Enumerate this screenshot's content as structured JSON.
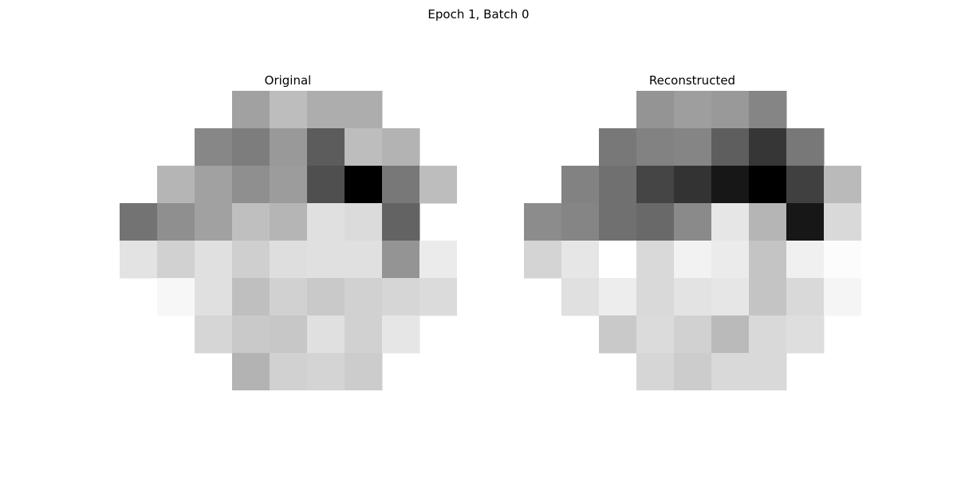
{
  "figure": {
    "suptitle": "Epoch 1, Batch 0"
  },
  "chart_data": [
    {
      "type": "heatmap",
      "title": "Original",
      "colormap": "gray_r",
      "grid_size": [
        8,
        9
      ],
      "axes": "off",
      "values": [
        [
          null,
          null,
          null,
          0.37,
          0.26,
          0.32,
          0.32,
          null,
          null
        ],
        [
          null,
          null,
          0.47,
          0.51,
          0.4,
          0.64,
          0.26,
          0.3,
          null
        ],
        [
          null,
          0.29,
          0.37,
          0.44,
          0.39,
          0.69,
          1.0,
          0.53,
          0.26
        ],
        [
          0.55,
          0.44,
          0.37,
          0.25,
          0.29,
          0.12,
          0.14,
          0.61,
          null
        ],
        [
          0.11,
          0.18,
          0.12,
          0.19,
          0.13,
          0.12,
          0.12,
          0.42,
          0.08
        ],
        [
          null,
          0.03,
          0.12,
          0.25,
          0.18,
          0.21,
          0.18,
          0.16,
          0.14
        ],
        [
          null,
          null,
          0.16,
          0.21,
          0.22,
          0.12,
          0.18,
          0.1,
          null
        ],
        [
          null,
          null,
          null,
          0.3,
          0.18,
          0.17,
          0.2,
          null,
          null
        ]
      ]
    },
    {
      "type": "heatmap",
      "title": "Reconstructed",
      "colormap": "gray_r",
      "grid_size": [
        8,
        9
      ],
      "axes": "off",
      "values": [
        [
          null,
          null,
          null,
          0.42,
          0.38,
          0.4,
          0.48,
          null,
          null
        ],
        [
          null,
          null,
          0.53,
          0.49,
          0.48,
          0.63,
          0.79,
          0.53,
          null
        ],
        [
          null,
          0.49,
          0.56,
          0.73,
          0.8,
          0.91,
          1.0,
          0.75,
          0.27
        ],
        [
          0.45,
          0.48,
          0.56,
          0.59,
          0.46,
          0.1,
          0.29,
          0.91,
          0.15
        ],
        [
          0.17,
          0.1,
          0.0,
          0.15,
          0.05,
          0.08,
          0.23,
          0.06,
          0.01
        ],
        [
          null,
          0.12,
          0.07,
          0.15,
          0.11,
          0.1,
          0.23,
          0.15,
          0.04
        ],
        [
          null,
          null,
          0.21,
          0.14,
          0.18,
          0.27,
          0.15,
          0.13,
          null
        ],
        [
          null,
          null,
          null,
          0.16,
          0.2,
          0.15,
          0.15,
          null,
          null
        ]
      ]
    }
  ]
}
